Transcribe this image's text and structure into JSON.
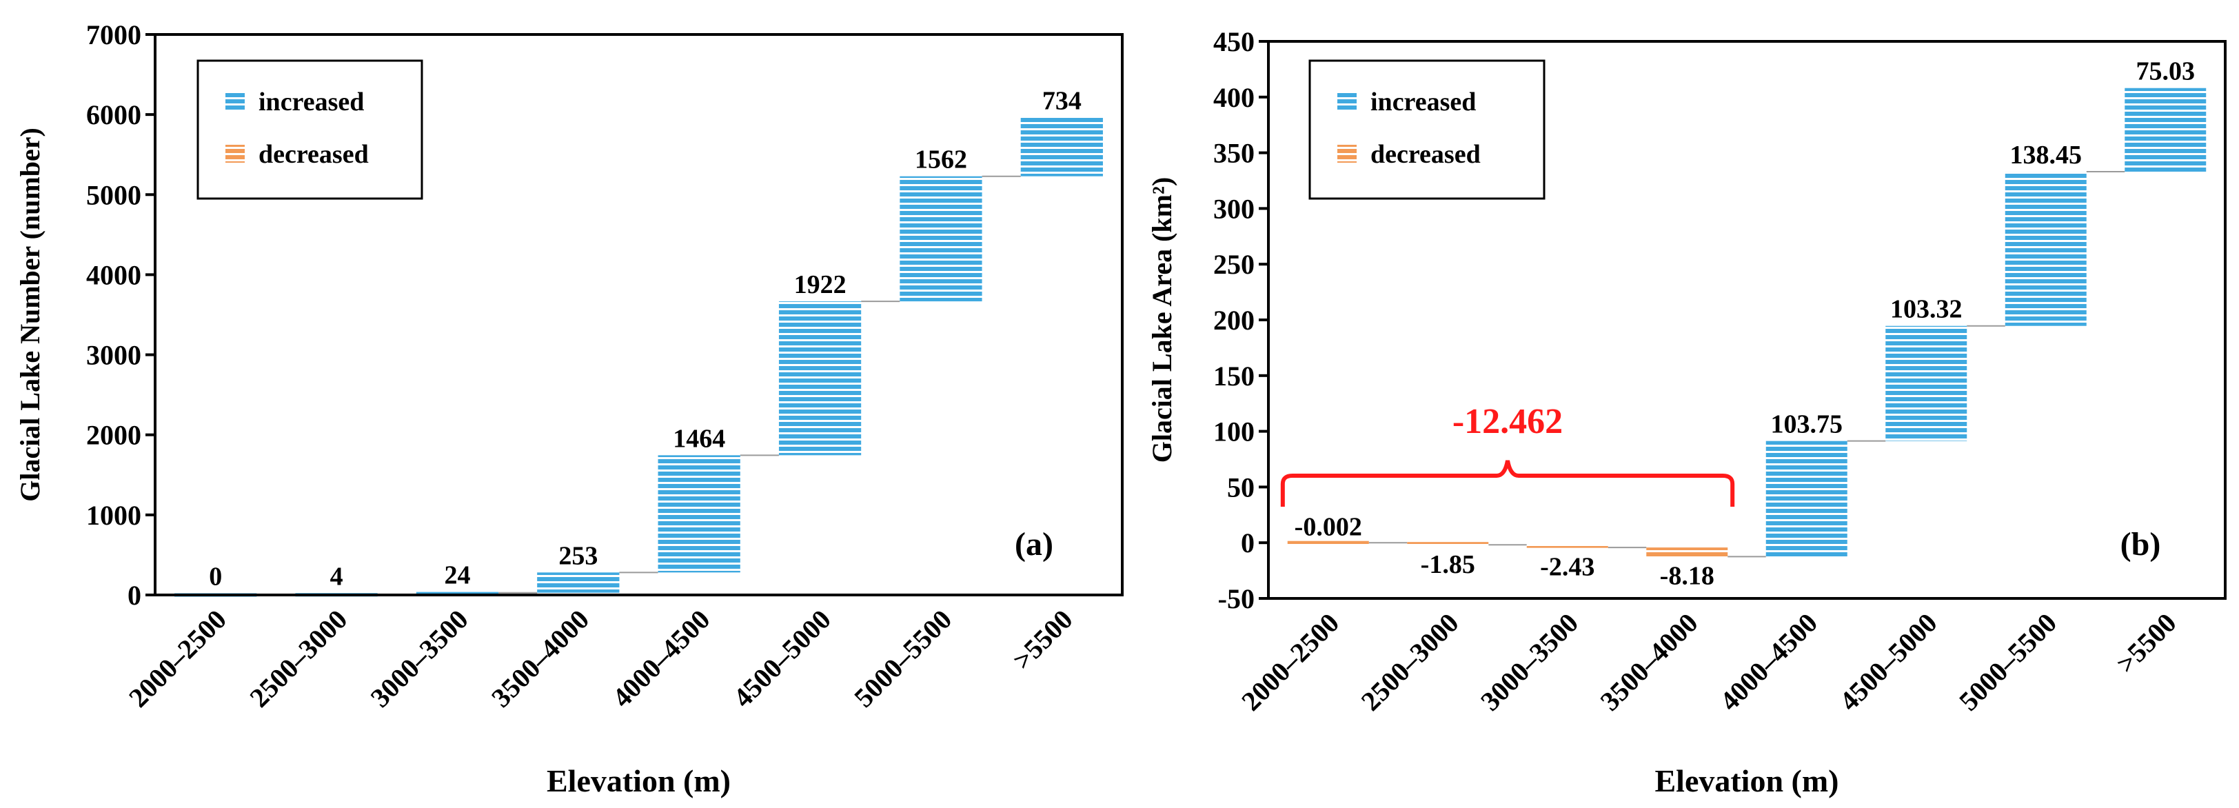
{
  "colors": {
    "increased": "#3fa9e0",
    "decreased": "#f39a55",
    "stripe": "#ffffff",
    "annotation": "#ff1a1a",
    "axis": "#000000",
    "connector": "#9a9a9a"
  },
  "chart_data": [
    {
      "type": "bar",
      "subtype": "waterfall",
      "panel_label": "(a)",
      "title": "",
      "xlabel": "Elevation (m)",
      "ylabel": "Glacial Lake Number (number)",
      "categories": [
        "2000–2500",
        "2500–3000",
        "3000–3500",
        "3500–4000",
        "4000–4500",
        "4500–5000",
        "5000–5500",
        ">5500"
      ],
      "values": [
        0,
        4,
        24,
        253,
        1464,
        1922,
        1562,
        734
      ],
      "value_labels": [
        "0",
        "4",
        "24",
        "253",
        "1464",
        "1922",
        "1562",
        "734"
      ],
      "ylim": [
        0,
        7000
      ],
      "yticks": [
        0,
        1000,
        2000,
        3000,
        4000,
        5000,
        6000,
        7000
      ],
      "ytick_labels": [
        "0",
        "1000",
        "2000",
        "3000",
        "4000",
        "5000",
        "6000",
        "7000"
      ],
      "legend": {
        "position": "top-left",
        "items": [
          {
            "label": "increased",
            "color_key": "increased"
          },
          {
            "label": "decreased",
            "color_key": "decreased"
          }
        ]
      }
    },
    {
      "type": "bar",
      "subtype": "waterfall",
      "panel_label": "(b)",
      "title": "",
      "xlabel": "Elevation (m)",
      "ylabel": "Glacial Lake Area (km²)",
      "categories": [
        "2000–2500",
        "2500–3000",
        "3000–3500",
        "3500–4000",
        "4000–4500",
        "4500–5000",
        "5000–5500",
        ">5500"
      ],
      "values": [
        -0.002,
        -1.85,
        -2.43,
        -8.18,
        103.75,
        103.32,
        138.45,
        75.03
      ],
      "value_labels": [
        "-0.002",
        "-1.85",
        "-2.43",
        "-8.18",
        "103.75",
        "103.32",
        "138.45",
        "75.03"
      ],
      "ylim": [
        -50,
        450
      ],
      "yticks": [
        -50,
        0,
        50,
        100,
        150,
        200,
        250,
        300,
        350,
        400,
        450
      ],
      "ytick_labels": [
        "-50",
        "0",
        "50",
        "100",
        "150",
        "200",
        "250",
        "300",
        "350",
        "400",
        "450"
      ],
      "legend": {
        "position": "top-left",
        "items": [
          {
            "label": "increased",
            "color_key": "increased"
          },
          {
            "label": "decreased",
            "color_key": "decreased"
          }
        ]
      },
      "annotation": {
        "label": "-12.462",
        "spans_categories": [
          0,
          3
        ]
      }
    }
  ]
}
